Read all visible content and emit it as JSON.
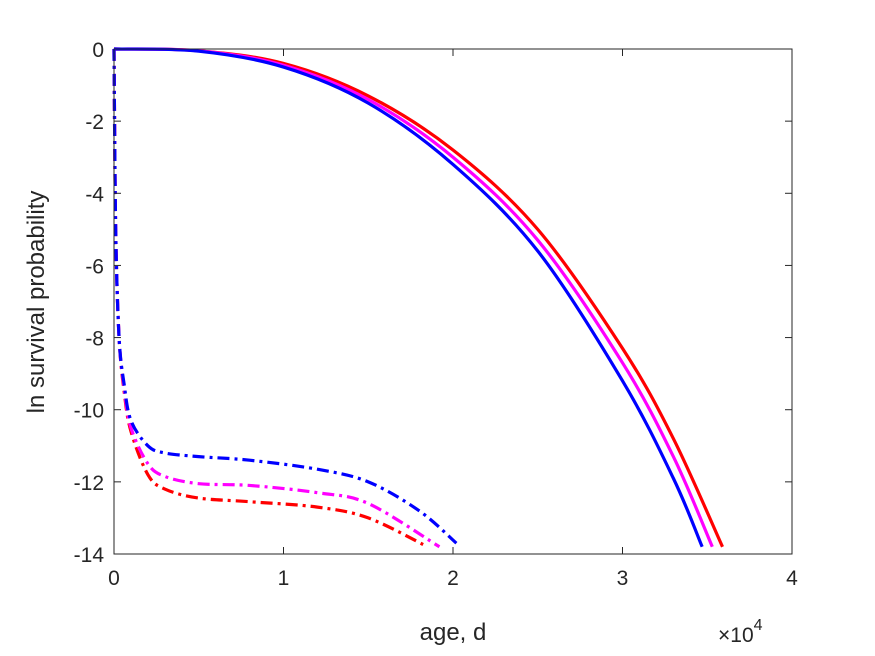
{
  "chart_data": {
    "type": "line",
    "title": "",
    "xlabel": "age, d",
    "ylabel": "ln survival probability",
    "x_exponent_label": "×10",
    "x_exponent_power": "4",
    "xlim": [
      0,
      40000
    ],
    "ylim": [
      -14,
      0
    ],
    "xticks": [
      0,
      10000,
      20000,
      30000,
      40000
    ],
    "xtick_labels": [
      "0",
      "1",
      "2",
      "3",
      "4"
    ],
    "yticks": [
      0,
      -2,
      -4,
      -6,
      -8,
      -10,
      -12,
      -14
    ],
    "ytick_labels": [
      "0",
      "-2",
      "-4",
      "-6",
      "-8",
      "-10",
      "-12",
      "-14"
    ],
    "grid": false,
    "series": [
      {
        "style": "solid",
        "color": "#ff0000",
        "x": [
          0,
          5000,
          10000,
          15000,
          20000,
          25000,
          30000,
          33000,
          35900
        ],
        "y": [
          0,
          -0.05,
          -0.4,
          -1.3,
          -2.8,
          -5.0,
          -8.3,
          -10.8,
          -13.8
        ]
      },
      {
        "style": "solid",
        "color": "#ff00ff",
        "x": [
          0,
          5000,
          10000,
          15000,
          20000,
          25000,
          30000,
          33000,
          35300
        ],
        "y": [
          0,
          -0.05,
          -0.45,
          -1.4,
          -3.0,
          -5.3,
          -8.7,
          -11.3,
          -13.8
        ]
      },
      {
        "style": "solid",
        "color": "#0000ff",
        "x": [
          0,
          5000,
          10000,
          15000,
          20000,
          25000,
          30000,
          33000,
          34700
        ],
        "y": [
          0,
          -0.06,
          -0.5,
          -1.5,
          -3.2,
          -5.6,
          -9.2,
          -11.9,
          -13.8
        ]
      },
      {
        "style": "dashdot",
        "color": "#ff0000",
        "x": [
          0,
          100,
          300,
          600,
          1000,
          2000,
          3000,
          5000,
          8000,
          12000,
          15000,
          18500
        ],
        "y": [
          0,
          -5.0,
          -8.0,
          -9.5,
          -10.6,
          -11.8,
          -12.2,
          -12.45,
          -12.55,
          -12.7,
          -13.0,
          -13.8
        ]
      },
      {
        "style": "dashdot",
        "color": "#ff00ff",
        "x": [
          0,
          100,
          300,
          600,
          1000,
          2000,
          3000,
          5000,
          8000,
          12000,
          15000,
          19200
        ],
        "y": [
          0,
          -5.0,
          -8.0,
          -9.4,
          -10.5,
          -11.5,
          -11.85,
          -12.05,
          -12.1,
          -12.3,
          -12.6,
          -13.8
        ]
      },
      {
        "style": "dashdot",
        "color": "#0000ff",
        "x": [
          0,
          100,
          300,
          600,
          1000,
          2000,
          3000,
          5000,
          8000,
          12000,
          15000,
          18000,
          20200
        ],
        "y": [
          0,
          -5.0,
          -8.0,
          -9.3,
          -10.3,
          -11.0,
          -11.2,
          -11.3,
          -11.4,
          -11.65,
          -12.0,
          -12.8,
          -13.7
        ]
      }
    ]
  }
}
